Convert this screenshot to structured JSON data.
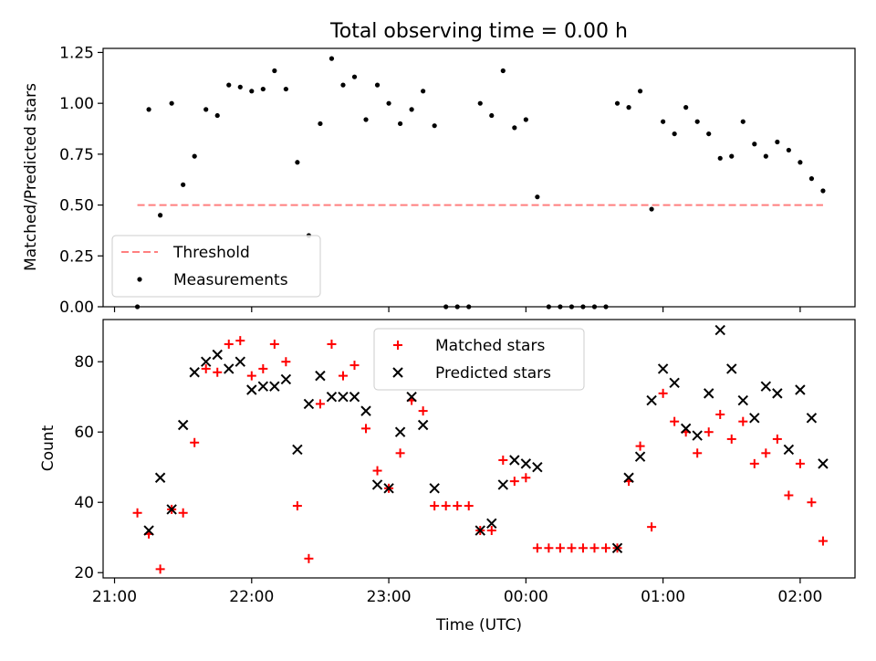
{
  "chart_data": {
    "title": "Total observing time = 0.00 h",
    "xlabel": "Time (UTC)",
    "x_tick_labels": [
      "21:00",
      "22:00",
      "23:00",
      "00:00",
      "01:00",
      "02:00"
    ],
    "x_tick_minutes": [
      1260,
      1320,
      1380,
      1440,
      1500,
      1560
    ],
    "xlim_minutes": [
      1255,
      1584
    ],
    "panels": [
      {
        "type": "scatter",
        "ylabel": "Matched/Predicted stars",
        "ylim": [
          0,
          1.27
        ],
        "y_ticks": [
          0,
          0.25,
          0.5,
          0.75,
          1.0,
          1.25
        ],
        "y_tick_labels": [
          "0.00",
          "0.25",
          "0.50",
          "0.75",
          "1.00",
          "1.25"
        ],
        "grid": false,
        "legend_position": "lower-left",
        "threshold": {
          "name": "Threshold",
          "value": 0.5,
          "x_start": "21:10",
          "x_end": "02:10",
          "color": "#ff7f7f"
        },
        "series": [
          {
            "name": "Measurements",
            "color": "#000000",
            "marker": "dot",
            "x": [
              "21:10",
              "21:15",
              "21:20",
              "21:25",
              "21:30",
              "21:35",
              "21:40",
              "21:45",
              "21:50",
              "21:55",
              "22:00",
              "22:05",
              "22:10",
              "22:15",
              "22:20",
              "22:25",
              "22:30",
              "22:35",
              "22:40",
              "22:45",
              "22:50",
              "22:55",
              "23:00",
              "23:05",
              "23:10",
              "23:15",
              "23:20",
              "23:25",
              "23:30",
              "23:35",
              "23:40",
              "23:45",
              "23:50",
              "23:55",
              "00:00",
              "00:05",
              "00:10",
              "00:15",
              "00:20",
              "00:25",
              "00:30",
              "00:35",
              "00:40",
              "00:45",
              "00:50",
              "00:55",
              "01:00",
              "01:05",
              "01:10",
              "01:15",
              "01:20",
              "01:25",
              "01:30",
              "01:35",
              "01:40",
              "01:45",
              "01:50",
              "01:55",
              "02:00",
              "02:05",
              "02:10"
            ],
            "y": [
              0.0,
              0.97,
              0.45,
              1.0,
              0.6,
              0.74,
              0.97,
              0.94,
              1.09,
              1.08,
              1.06,
              1.07,
              1.16,
              1.07,
              0.71,
              0.35,
              0.9,
              1.22,
              1.09,
              1.13,
              0.92,
              1.09,
              1.0,
              0.9,
              0.97,
              1.06,
              0.89,
              0.0,
              0.0,
              0.0,
              1.0,
              0.94,
              1.16,
              0.88,
              0.92,
              0.54,
              0.0,
              0.0,
              0.0,
              0.0,
              0.0,
              0.0,
              1.0,
              0.98,
              1.06,
              0.48,
              0.91,
              0.85,
              0.98,
              0.91,
              0.85,
              0.73,
              0.74,
              0.91,
              0.8,
              0.74,
              0.81,
              0.77,
              0.71,
              0.63,
              0.57
            ]
          }
        ]
      },
      {
        "type": "scatter",
        "ylabel": "Count",
        "ylim": [
          18.5,
          92
        ],
        "y_ticks": [
          20,
          40,
          60,
          80
        ],
        "y_tick_labels": [
          "20",
          "40",
          "60",
          "80"
        ],
        "grid": false,
        "legend_position": "upper-center",
        "series": [
          {
            "name": "Matched stars",
            "color": "#ff0000",
            "marker": "plus",
            "x": [
              "21:10",
              "21:15",
              "21:20",
              "21:25",
              "21:30",
              "21:35",
              "21:40",
              "21:45",
              "21:50",
              "21:55",
              "22:00",
              "22:05",
              "22:10",
              "22:15",
              "22:20",
              "22:25",
              "22:30",
              "22:35",
              "22:40",
              "22:45",
              "22:50",
              "22:55",
              "23:00",
              "23:05",
              "23:10",
              "23:15",
              "23:20",
              "23:25",
              "23:30",
              "23:35",
              "23:40",
              "23:45",
              "23:50",
              "23:55",
              "00:00",
              "00:05",
              "00:10",
              "00:15",
              "00:20",
              "00:25",
              "00:30",
              "00:35",
              "00:40",
              "00:45",
              "00:50",
              "00:55",
              "01:00",
              "01:05",
              "01:10",
              "01:15",
              "01:20",
              "01:25",
              "01:30",
              "01:35",
              "01:40",
              "01:45",
              "01:50",
              "01:55",
              "02:00",
              "02:05",
              "02:10"
            ],
            "y": [
              37,
              31,
              21,
              38,
              37,
              57,
              78,
              77,
              85,
              86,
              76,
              78,
              85,
              80,
              39,
              24,
              68,
              85,
              76,
              79,
              61,
              49,
              44,
              54,
              69,
              66,
              39,
              39,
              39,
              39,
              32,
              32,
              52,
              46,
              47,
              27,
              27,
              27,
              27,
              27,
              27,
              27,
              27,
              46,
              56,
              33,
              71,
              63,
              60,
              54,
              60,
              65,
              58,
              63,
              51,
              54,
              58,
              42,
              51,
              40,
              29
            ]
          },
          {
            "name": "Predicted stars",
            "color": "#000000",
            "marker": "x",
            "x": [
              "21:15",
              "21:20",
              "21:25",
              "21:30",
              "21:35",
              "21:40",
              "21:45",
              "21:50",
              "21:55",
              "22:00",
              "22:05",
              "22:10",
              "22:15",
              "22:20",
              "22:25",
              "22:30",
              "22:35",
              "22:40",
              "22:45",
              "22:50",
              "22:55",
              "23:00",
              "23:05",
              "23:10",
              "23:15",
              "23:20",
              "23:40",
              "23:45",
              "23:50",
              "23:55",
              "00:00",
              "00:05",
              "00:40",
              "00:45",
              "00:50",
              "00:55",
              "01:00",
              "01:05",
              "01:10",
              "01:15",
              "01:20",
              "01:25",
              "01:30",
              "01:35",
              "01:40",
              "01:45",
              "01:50",
              "01:55",
              "02:00",
              "02:05",
              "02:10"
            ],
            "y": [
              32,
              47,
              38,
              62,
              77,
              80,
              82,
              78,
              80,
              72,
              73,
              73,
              75,
              55,
              68,
              76,
              70,
              70,
              70,
              66,
              45,
              44,
              60,
              70,
              62,
              44,
              32,
              34,
              45,
              52,
              51,
              50,
              27,
              47,
              53,
              69,
              78,
              74,
              61,
              59,
              71,
              89,
              78,
              69,
              64,
              73,
              71,
              55,
              72,
              64,
              51
            ]
          }
        ]
      }
    ]
  }
}
